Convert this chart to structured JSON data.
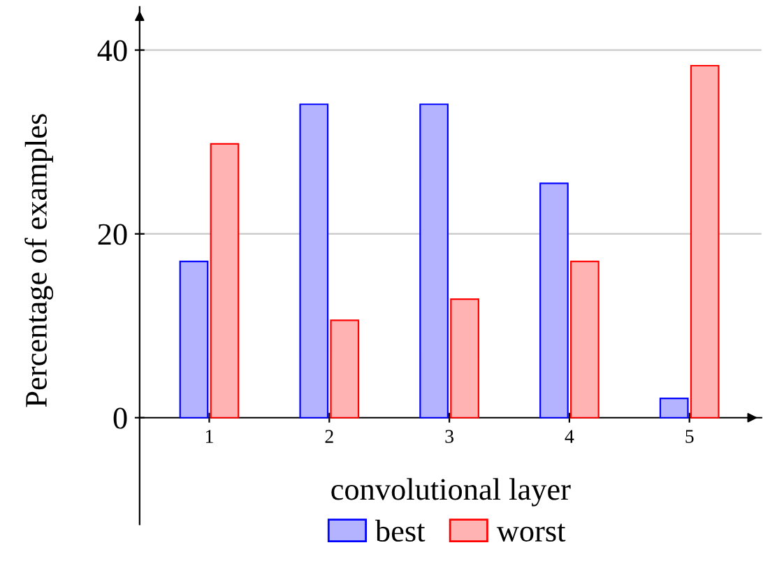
{
  "chart_data": {
    "type": "bar",
    "xlabel": "convolutional layer",
    "ylabel": "Percentage of examples",
    "categories": [
      "1",
      "2",
      "3",
      "4",
      "5"
    ],
    "series": [
      {
        "name": "best",
        "color": "#b3b3ff",
        "values": [
          17.0,
          34.1,
          34.1,
          25.5,
          2.1
        ]
      },
      {
        "name": "worst",
        "color": "#ffb3b3",
        "values": [
          29.8,
          10.6,
          12.9,
          17.0,
          38.3
        ]
      }
    ],
    "ylim": [
      -11.6,
      44.7
    ],
    "yticks": [
      0,
      20,
      40
    ],
    "grid": "y",
    "legend": "bottom"
  }
}
